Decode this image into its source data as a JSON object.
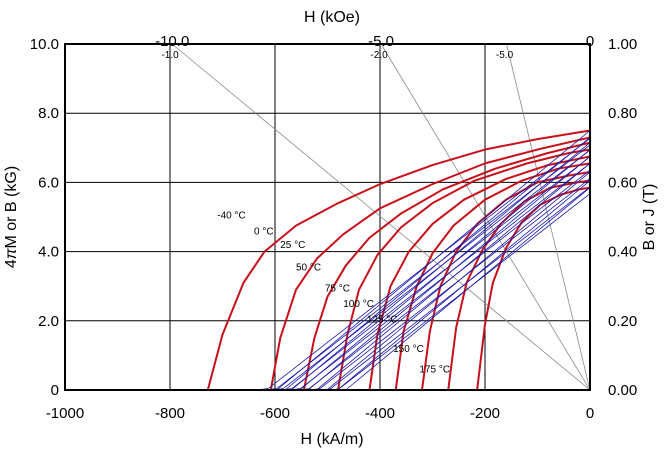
{
  "chart_data": {
    "type": "line",
    "xlabel": "H (kA/m)",
    "x2label": "H (kOe)",
    "ylabel": "4πM or B (kG)",
    "ylabel_parts": [
      "4",
      "π",
      "M or B (kG)"
    ],
    "y2label": "B or J  (T)",
    "xlim": [
      -1000,
      0
    ],
    "ylim": [
      0,
      10
    ],
    "grid": true,
    "x_ticks": [
      "-1000",
      "-800",
      "-600",
      "-400",
      "-200",
      "0"
    ],
    "x_tick_values": [
      -1000,
      -800,
      -600,
      -400,
      -200,
      0
    ],
    "y_ticks": [
      "0",
      "2.0",
      "4.0",
      "6.0",
      "8.0",
      "10.0"
    ],
    "y_tick_values": [
      0,
      2,
      4,
      6,
      8,
      10
    ],
    "y2_ticks": [
      "0.00",
      "0.20",
      "0.40",
      "0.60",
      "0.80",
      "1.00"
    ],
    "top_ticks": [
      {
        "label": "-10.0",
        "kA_per_m": -795.8
      },
      {
        "label": "-5.0",
        "kA_per_m": -397.9
      },
      {
        "label": "0",
        "kA_per_m": 0
      }
    ],
    "load_lines": [
      {
        "label": "-1.0",
        "x_at_top": -796
      },
      {
        "label": "-2.0",
        "x_at_top": -398
      },
      {
        "label": "-5.0",
        "x_at_top": -159
      }
    ],
    "temperature_labels": [
      {
        "text": "-40 °C",
        "x": -710,
        "y": 4.95
      },
      {
        "text": "0 °C",
        "x": -640,
        "y": 4.5
      },
      {
        "text": "25 °C",
        "x": -590,
        "y": 4.1
      },
      {
        "text": "50 °C",
        "x": -560,
        "y": 3.45
      },
      {
        "text": "75 °C",
        "x": -505,
        "y": 2.85
      },
      {
        "text": "100 °C",
        "x": -470,
        "y": 2.4
      },
      {
        "text": "125 °C",
        "x": -425,
        "y": 1.95
      },
      {
        "text": "150 °C",
        "x": -375,
        "y": 1.1
      },
      {
        "text": "175 °C",
        "x": -325,
        "y": 0.5
      }
    ],
    "series": [
      {
        "name": "-40 °C",
        "Br": 7.5,
        "x": [
          -728,
          -700,
          -660,
          -620,
          -560,
          -480,
          -400,
          -300,
          -200,
          -100,
          0
        ],
        "values": [
          0,
          1.6,
          3.1,
          4.0,
          4.75,
          5.4,
          5.95,
          6.5,
          6.95,
          7.25,
          7.5
        ]
      },
      {
        "name": "0 °C",
        "Br": 7.3,
        "x": [
          -608,
          -590,
          -560,
          -520,
          -470,
          -400,
          -300,
          -200,
          -100,
          0
        ],
        "values": [
          0,
          1.5,
          2.9,
          3.8,
          4.5,
          5.25,
          5.95,
          6.55,
          6.95,
          7.3
        ]
      },
      {
        "name": "25 °C",
        "Br": 7.15,
        "x": [
          -545,
          -525,
          -500,
          -465,
          -420,
          -360,
          -280,
          -180,
          -80,
          0
        ],
        "values": [
          0,
          1.5,
          2.7,
          3.6,
          4.4,
          5.1,
          5.8,
          6.4,
          6.85,
          7.15
        ]
      },
      {
        "name": "50 °C",
        "Br": 6.95,
        "x": [
          -480,
          -462,
          -440,
          -405,
          -360,
          -300,
          -220,
          -120,
          -40,
          0
        ],
        "values": [
          0,
          1.6,
          2.9,
          3.9,
          4.7,
          5.4,
          6.05,
          6.55,
          6.85,
          6.95
        ]
      },
      {
        "name": "75 °C",
        "Br": 6.75,
        "x": [
          -420,
          -405,
          -380,
          -345,
          -300,
          -240,
          -160,
          -80,
          0
        ],
        "values": [
          0,
          1.6,
          3.0,
          4.0,
          4.8,
          5.5,
          6.1,
          6.5,
          6.75
        ]
      },
      {
        "name": "100 °C",
        "Br": 6.55,
        "x": [
          -370,
          -355,
          -330,
          -300,
          -260,
          -200,
          -130,
          -60,
          0
        ],
        "values": [
          0,
          1.7,
          3.0,
          3.95,
          4.75,
          5.5,
          6.05,
          6.4,
          6.55
        ]
      },
      {
        "name": "125 °C",
        "Br": 6.3,
        "x": [
          -320,
          -305,
          -285,
          -255,
          -215,
          -160,
          -100,
          -40,
          0
        ],
        "values": [
          0,
          1.7,
          3.0,
          4.0,
          4.8,
          5.5,
          6.0,
          6.2,
          6.3
        ]
      },
      {
        "name": "150 °C",
        "Br": 6.05,
        "x": [
          -270,
          -255,
          -235,
          -205,
          -170,
          -125,
          -75,
          -25,
          0
        ],
        "values": [
          0,
          1.8,
          3.1,
          4.05,
          4.8,
          5.45,
          5.85,
          6.0,
          6.05
        ]
      },
      {
        "name": "175 °C",
        "Br": 5.85,
        "x": [
          -215,
          -200,
          -185,
          -160,
          -130,
          -95,
          -55,
          -20,
          0
        ],
        "values": [
          0,
          1.9,
          3.1,
          4.1,
          4.85,
          5.35,
          5.65,
          5.8,
          5.85
        ]
      }
    ]
  }
}
